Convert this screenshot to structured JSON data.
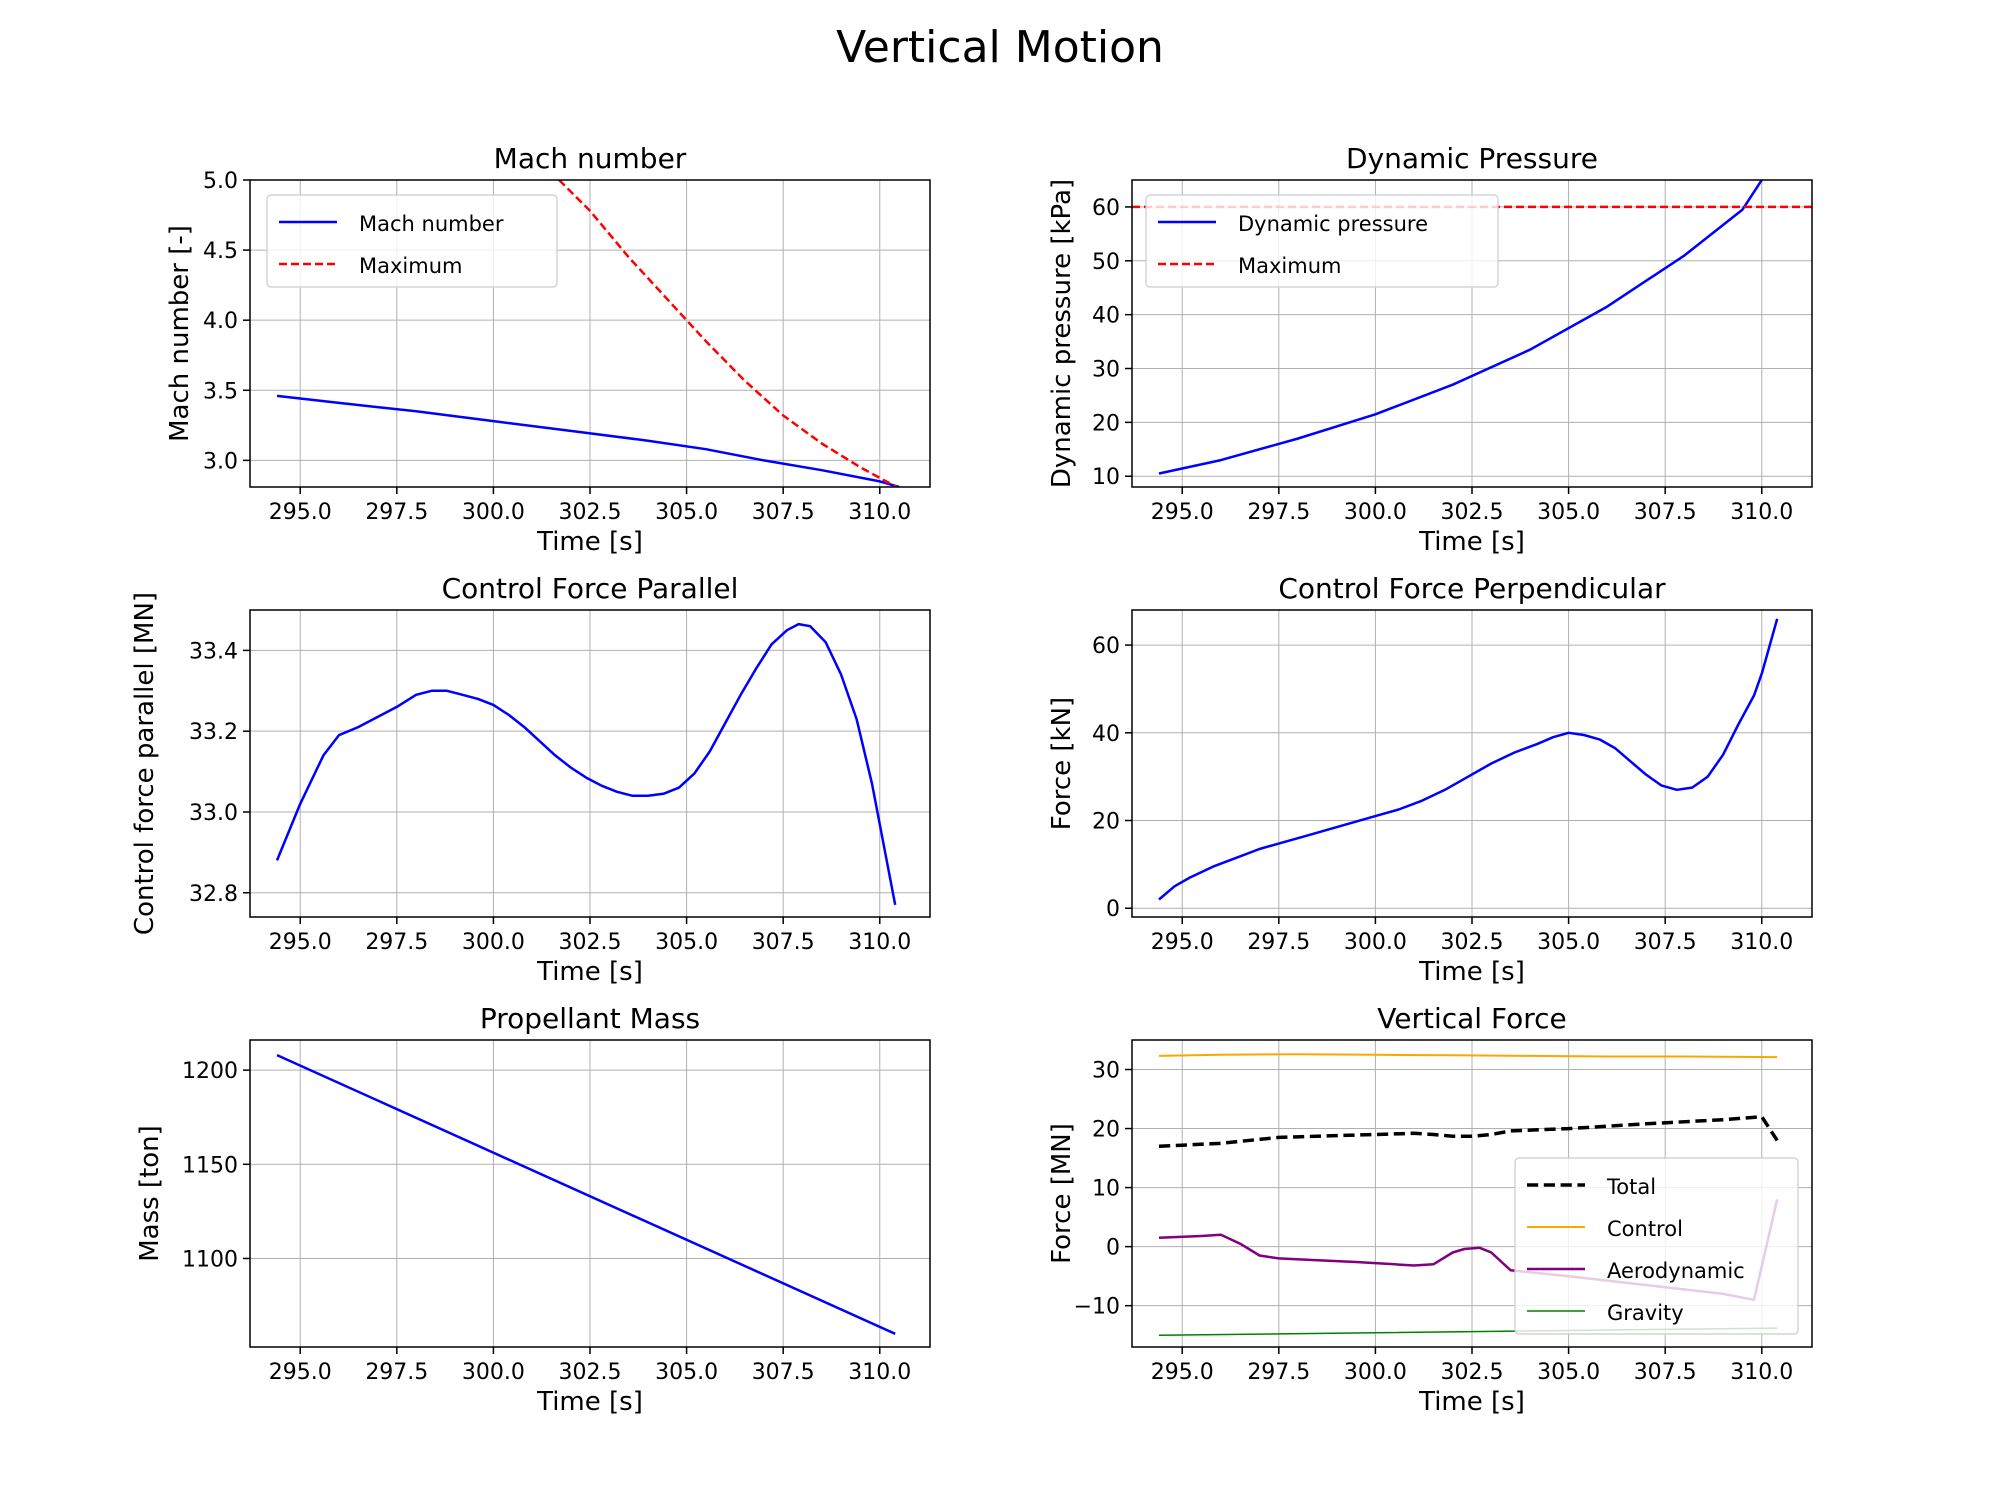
{
  "figure": {
    "title": "Vertical Motion"
  },
  "chart_data": [
    {
      "id": "mach",
      "type": "line",
      "title": "Mach number",
      "xlabel": "Time [s]",
      "ylabel": "Mach number [-]",
      "xlim": [
        293.7,
        311.3
      ],
      "ylim": [
        2.81,
        5.0
      ],
      "xticks": [
        295.0,
        297.5,
        300.0,
        302.5,
        305.0,
        307.5,
        310.0
      ],
      "xtick_labels": [
        "295.0",
        "297.5",
        "300.0",
        "302.5",
        "305.0",
        "307.5",
        "310.0"
      ],
      "yticks": [
        3.0,
        3.5,
        4.0,
        4.5,
        5.0
      ],
      "ytick_labels": [
        "3.0",
        "3.5",
        "4.0",
        "4.5",
        "5.0"
      ],
      "grid": true,
      "legend": {
        "location": "upper-left",
        "fontsize": 21
      },
      "series": [
        {
          "name": "Mach number",
          "color": "#0000ff",
          "dash": "solid",
          "width": 2.5,
          "x": [
            294.4,
            296.0,
            298.0,
            300.0,
            302.0,
            304.0,
            305.5,
            307.0,
            308.5,
            310.0,
            310.5
          ],
          "y": [
            3.46,
            3.41,
            3.35,
            3.28,
            3.21,
            3.14,
            3.08,
            3.0,
            2.93,
            2.85,
            2.81
          ]
        },
        {
          "name": "Maximum",
          "color": "#ff0000",
          "dash": "dashed",
          "width": 2.5,
          "x": [
            301.7,
            302.5,
            303.5,
            304.5,
            305.5,
            306.5,
            307.5,
            308.5,
            309.5,
            310.5
          ],
          "y": [
            5.0,
            4.78,
            4.45,
            4.15,
            3.85,
            3.57,
            3.32,
            3.12,
            2.95,
            2.8
          ]
        }
      ]
    },
    {
      "id": "dynp",
      "type": "line",
      "title": "Dynamic Pressure",
      "xlabel": "Time [s]",
      "ylabel": "Dynamic pressure [kPa]",
      "xlim": [
        293.7,
        311.3
      ],
      "ylim": [
        8.0,
        65.0
      ],
      "xticks": [
        295.0,
        297.5,
        300.0,
        302.5,
        305.0,
        307.5,
        310.0
      ],
      "xtick_labels": [
        "295.0",
        "297.5",
        "300.0",
        "302.5",
        "305.0",
        "307.5",
        "310.0"
      ],
      "yticks": [
        10,
        20,
        30,
        40,
        50,
        60
      ],
      "ytick_labels": [
        "10",
        "20",
        "30",
        "40",
        "50",
        "60"
      ],
      "grid": true,
      "legend": {
        "location": "upper-left",
        "fontsize": 21
      },
      "series": [
        {
          "name": "Dynamic pressure",
          "color": "#0000ff",
          "dash": "solid",
          "width": 2.5,
          "x": [
            294.4,
            296.0,
            298.0,
            300.0,
            302.0,
            304.0,
            306.0,
            308.0,
            309.5,
            310.0
          ],
          "y": [
            10.5,
            13.0,
            17.0,
            21.5,
            27.0,
            33.5,
            41.5,
            51.0,
            59.5,
            65.0
          ]
        },
        {
          "name": "Maximum",
          "color": "#ff0000",
          "dash": "dashed",
          "width": 2.5,
          "x": [
            293.7,
            311.3
          ],
          "y": [
            60.0,
            60.0
          ]
        }
      ]
    },
    {
      "id": "cfpar",
      "type": "line",
      "title": "Control Force Parallel",
      "xlabel": "Time [s]",
      "ylabel": "Control force parallel [MN]",
      "xlim": [
        293.7,
        311.3
      ],
      "ylim": [
        32.74,
        33.5
      ],
      "xticks": [
        295.0,
        297.5,
        300.0,
        302.5,
        305.0,
        307.5,
        310.0
      ],
      "xtick_labels": [
        "295.0",
        "297.5",
        "300.0",
        "302.5",
        "305.0",
        "307.5",
        "310.0"
      ],
      "yticks": [
        32.8,
        33.0,
        33.2,
        33.4
      ],
      "ytick_labels": [
        "32.8",
        "33.0",
        "33.2",
        "33.4"
      ],
      "grid": true,
      "series": [
        {
          "name": "",
          "color": "#0000ff",
          "dash": "solid",
          "width": 2.5,
          "x": [
            294.4,
            295.0,
            295.6,
            296.0,
            296.5,
            297.0,
            297.5,
            298.0,
            298.4,
            298.8,
            299.2,
            299.6,
            300.0,
            300.4,
            300.8,
            301.2,
            301.6,
            302.0,
            302.4,
            302.8,
            303.2,
            303.6,
            304.0,
            304.4,
            304.8,
            305.2,
            305.6,
            306.0,
            306.4,
            306.8,
            307.2,
            307.6,
            307.9,
            308.2,
            308.6,
            309.0,
            309.4,
            309.8,
            310.4
          ],
          "y": [
            32.88,
            33.02,
            33.14,
            33.19,
            33.21,
            33.235,
            33.26,
            33.29,
            33.3,
            33.3,
            33.29,
            33.28,
            33.265,
            33.24,
            33.21,
            33.175,
            33.14,
            33.11,
            33.085,
            33.065,
            33.05,
            33.04,
            33.04,
            33.045,
            33.06,
            33.095,
            33.15,
            33.22,
            33.29,
            33.355,
            33.415,
            33.45,
            33.465,
            33.46,
            33.42,
            33.34,
            33.23,
            33.07,
            32.77
          ]
        }
      ]
    },
    {
      "id": "cfperp",
      "type": "line",
      "title": "Control Force Perpendicular",
      "xlabel": "Time [s]",
      "ylabel": "Force [kN]",
      "xlim": [
        293.7,
        311.3
      ],
      "ylim": [
        -2.0,
        68.0
      ],
      "xticks": [
        295.0,
        297.5,
        300.0,
        302.5,
        305.0,
        307.5,
        310.0
      ],
      "xtick_labels": [
        "295.0",
        "297.5",
        "300.0",
        "302.5",
        "305.0",
        "307.5",
        "310.0"
      ],
      "yticks": [
        0,
        20,
        40,
        60
      ],
      "ytick_labels": [
        "0",
        "20",
        "40",
        "60"
      ],
      "grid": true,
      "series": [
        {
          "name": "",
          "color": "#0000ff",
          "dash": "solid",
          "width": 2.5,
          "x": [
            294.4,
            294.8,
            295.2,
            295.8,
            296.4,
            297.0,
            297.6,
            298.2,
            298.8,
            299.4,
            300.0,
            300.6,
            301.2,
            301.8,
            302.4,
            303.0,
            303.6,
            304.2,
            304.6,
            305.0,
            305.4,
            305.8,
            306.2,
            306.6,
            307.0,
            307.4,
            307.8,
            308.2,
            308.6,
            309.0,
            309.4,
            309.8,
            310.0,
            310.4
          ],
          "y": [
            2.0,
            5.0,
            7.0,
            9.5,
            11.5,
            13.5,
            15.0,
            16.5,
            18.0,
            19.5,
            21.0,
            22.5,
            24.5,
            27.0,
            30.0,
            33.0,
            35.5,
            37.5,
            39.0,
            40.0,
            39.5,
            38.5,
            36.5,
            33.5,
            30.5,
            28.0,
            27.0,
            27.5,
            30.0,
            35.0,
            42.0,
            48.5,
            53.5,
            66.0
          ]
        }
      ]
    },
    {
      "id": "mass",
      "type": "line",
      "title": "Propellant Mass",
      "xlabel": "Time [s]",
      "ylabel": "Mass [ton]",
      "xlim": [
        293.7,
        311.3
      ],
      "ylim": [
        1053.0,
        1216.0
      ],
      "xticks": [
        295.0,
        297.5,
        300.0,
        302.5,
        305.0,
        307.5,
        310.0
      ],
      "xtick_labels": [
        "295.0",
        "297.5",
        "300.0",
        "302.5",
        "305.0",
        "307.5",
        "310.0"
      ],
      "yticks": [
        1100,
        1150,
        1200
      ],
      "ytick_labels": [
        "1100",
        "1150",
        "1200"
      ],
      "grid": true,
      "series": [
        {
          "name": "",
          "color": "#0000ff",
          "dash": "solid",
          "width": 2.5,
          "x": [
            294.4,
            310.4
          ],
          "y": [
            1208.0,
            1060.0
          ]
        }
      ]
    },
    {
      "id": "vforce",
      "type": "line",
      "title": "Vertical Force",
      "xlabel": "Time [s]",
      "ylabel": "Force [MN]",
      "xlim": [
        293.7,
        311.3
      ],
      "ylim": [
        -17.0,
        35.0
      ],
      "xticks": [
        295.0,
        297.5,
        300.0,
        302.5,
        305.0,
        307.5,
        310.0
      ],
      "xtick_labels": [
        "295.0",
        "297.5",
        "300.0",
        "302.5",
        "305.0",
        "307.5",
        "310.0"
      ],
      "yticks": [
        -10,
        0,
        10,
        20,
        30
      ],
      "ytick_labels": [
        "−10",
        "0",
        "10",
        "20",
        "30"
      ],
      "grid": true,
      "legend": {
        "location": "lower-right",
        "fontsize": 21
      },
      "series": [
        {
          "name": "Total",
          "color": "#000000",
          "dash": "dashed",
          "width": 3.5,
          "x": [
            294.4,
            296.0,
            297.5,
            299.0,
            300.0,
            301.0,
            301.5,
            302.0,
            302.5,
            303.0,
            303.5,
            305.0,
            307.0,
            309.0,
            310.0,
            310.4
          ],
          "y": [
            17.0,
            17.5,
            18.5,
            18.8,
            19.0,
            19.2,
            19.0,
            18.7,
            18.7,
            19.0,
            19.6,
            20.0,
            20.8,
            21.5,
            22.0,
            18.0
          ]
        },
        {
          "name": "Control",
          "color": "#ffa500",
          "dash": "solid",
          "width": 2,
          "x": [
            294.4,
            296.0,
            298.0,
            300.0,
            302.0,
            304.0,
            306.0,
            308.0,
            310.4
          ],
          "y": [
            32.3,
            32.5,
            32.6,
            32.5,
            32.4,
            32.3,
            32.2,
            32.2,
            32.1
          ]
        },
        {
          "name": "Aerodynamic",
          "color": "#800080",
          "dash": "solid",
          "width": 2.5,
          "x": [
            294.4,
            295.5,
            296.0,
            296.5,
            297.0,
            297.5,
            298.5,
            299.5,
            300.5,
            301.0,
            301.5,
            302.0,
            302.3,
            302.7,
            303.0,
            303.5,
            305.0,
            307.0,
            309.0,
            309.8,
            310.4
          ],
          "y": [
            1.5,
            1.8,
            2.0,
            0.5,
            -1.5,
            -2.0,
            -2.3,
            -2.6,
            -3.0,
            -3.2,
            -3.0,
            -1.0,
            -0.4,
            -0.2,
            -1.0,
            -4.0,
            -5.0,
            -6.5,
            -8.0,
            -9.0,
            8.0
          ]
        },
        {
          "name": "Gravity",
          "color": "#008000",
          "dash": "solid",
          "width": 1.5,
          "x": [
            294.4,
            300.0,
            305.0,
            310.4
          ],
          "y": [
            -15.0,
            -14.6,
            -14.2,
            -13.8
          ]
        }
      ]
    }
  ]
}
